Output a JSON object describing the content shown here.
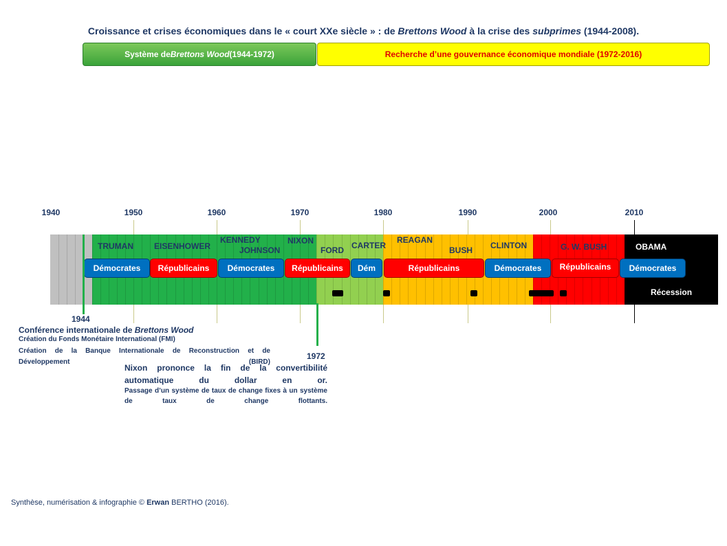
{
  "title": {
    "pre": "Croissance et crises économiques dans le « court XXe siècle » : de ",
    "em1": "Brettons Wood",
    "mid": " à la crise des ",
    "em2": "subprimes",
    "post": " (1944-2008)."
  },
  "periods": {
    "bretton_woods": {
      "pre": "Système de ",
      "em": "Brettons Wood",
      "post": " (1944-1972)"
    },
    "governance": "Recherche d’une gouvernance économique mondiale (1972-2016)"
  },
  "timeline": {
    "start_year": 1940,
    "end_year": 2020,
    "year_labels": [
      "1940",
      "1950",
      "1960",
      "1970",
      "1980",
      "1990",
      "2000",
      "2010"
    ],
    "segments": [
      {
        "from": 1940,
        "to": 1945,
        "color": "#c0c0c0"
      },
      {
        "from": 1945,
        "to": 1972,
        "color": "#22b04a"
      },
      {
        "from": 1972,
        "to": 1980,
        "color": "#92d050"
      },
      {
        "from": 1980,
        "to": 1998,
        "color": "#ffc000"
      },
      {
        "from": 1998,
        "to": 2009,
        "color": "#ff0000"
      },
      {
        "from": 2009,
        "to": 2020,
        "color": "#000000"
      }
    ],
    "presidents": [
      "TRUMAN",
      "EISENHOWER",
      "KENNEDY",
      "JOHNSON",
      "NIXON",
      "FORD",
      "CARTER",
      "REAGAN",
      "BUSH",
      "CLINTON",
      "G. W. BUSH",
      "OBAMA"
    ],
    "parties": {
      "truman": "Démocrates",
      "eisenhower": "Républicains",
      "kennedy_johnson": "Démocrates",
      "nixon": "Républicains",
      "carter": "Dém",
      "reagan_bush": "Républicains",
      "clinton": "Démocrates",
      "gw_bush": "Républicains",
      "obama": "Démocrates"
    },
    "recession_label": "Récession",
    "recessions": [
      [
        1973.9,
        1975.2
      ],
      [
        1980.0,
        1980.5
      ],
      [
        1990.5,
        1991.2
      ],
      [
        1997.5,
        2000.5
      ],
      [
        2001.2,
        2001.9
      ]
    ]
  },
  "event_1944": {
    "year": "1944",
    "title_pre": "Conférence internationale de ",
    "title_em": "Brettons Wood",
    "line1": "Création du Fonds Monétaire International (FMI)",
    "line2": "Création de la Banque Internationale de Reconstruction et de Développement (BIRD)"
  },
  "event_1972": {
    "year": "1972",
    "title": "Nixon prononce la fin de la convertibilité automatique du dollar en or.",
    "line1": "Passage d’un système de taux de change fixes à un système de taux de change flottants."
  },
  "credit": {
    "pre": "Synthèse, numérisation & infographie © ",
    "bold": "Erwan",
    "post": " BERTHO (2016)."
  },
  "colors": {
    "navy": "#1f3864",
    "democrats": "#0070c0",
    "republicans": "#ff0000",
    "bretton_woods_green": "#22b04a",
    "governance_yellow": "#ffff00"
  }
}
